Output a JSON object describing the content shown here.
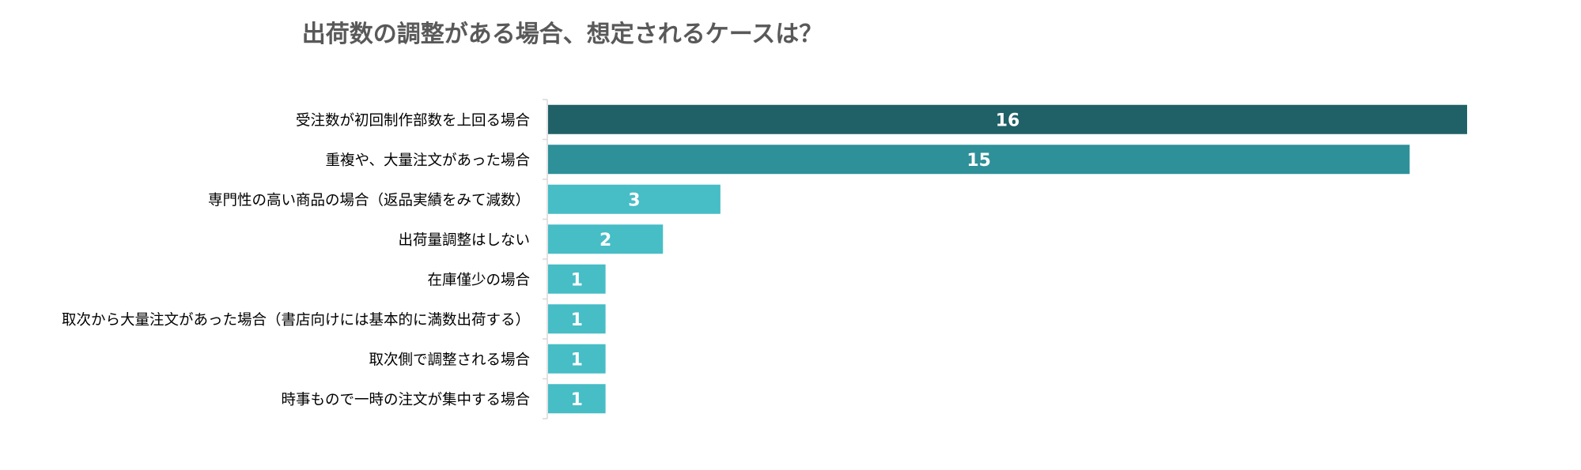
{
  "chart_data": {
    "type": "bar",
    "orientation": "horizontal",
    "title": "出荷数の調整がある場合、想定されるケースは？",
    "xlabel": "",
    "ylabel": "",
    "categories": [
      "受注数が初回制作部数を上回る場合",
      "重複や、大量注文があった場合",
      "専門性の高い商品の場合（返品実績をみて減数）",
      "出荷量調整はしない",
      "在庫僅少の場合",
      "取次から大量注文があった場合（書店向けには基本的に満数出荷する）",
      "取次側で調整される場合",
      "時事もので一時の注文が集中する場合"
    ],
    "values": [
      16,
      15,
      3,
      2,
      1,
      1,
      1,
      1
    ],
    "xlim": [
      0,
      16
    ],
    "grid": false,
    "legend": "none",
    "bar_colors": [
      "#1f6166",
      "#2e9098",
      "#47bdc6",
      "#47bdc6",
      "#47bdc6",
      "#47bdc6",
      "#47bdc6",
      "#47bdc6"
    ],
    "label_color": "#ffffff",
    "category_color": "#000000"
  }
}
